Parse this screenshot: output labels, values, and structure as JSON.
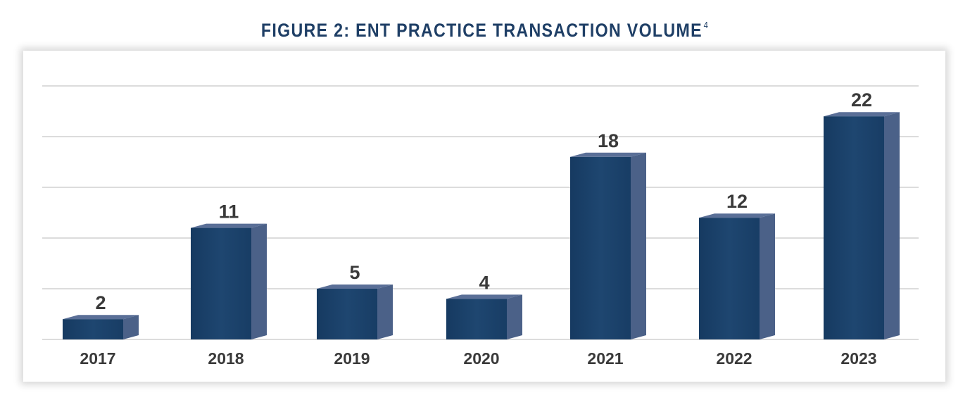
{
  "title": "FIGURE 2: ENT PRACTICE TRANSACTION VOLUME",
  "title_footnote": "4",
  "colors": {
    "title": "#1f3f66",
    "bar_front": "#1e4670",
    "bar_side": "#4b6188",
    "bar_top": "#5a6f97",
    "gridline": "#b9b9b9",
    "text": "#3a3a3a"
  },
  "chart_data": {
    "type": "bar",
    "title": "FIGURE 2: ENT PRACTICE TRANSACTION VOLUME",
    "categories": [
      "2017",
      "2018",
      "2019",
      "2020",
      "2021",
      "2022",
      "2023"
    ],
    "values": [
      2,
      11,
      5,
      4,
      18,
      12,
      22
    ],
    "data_labels": [
      "2",
      "11",
      "5",
      "4",
      "18",
      "12",
      "22"
    ],
    "xlabel": "",
    "ylabel": "",
    "ylim": [
      0,
      25
    ],
    "grid": true,
    "legend": "none",
    "style": "3d-bar"
  }
}
